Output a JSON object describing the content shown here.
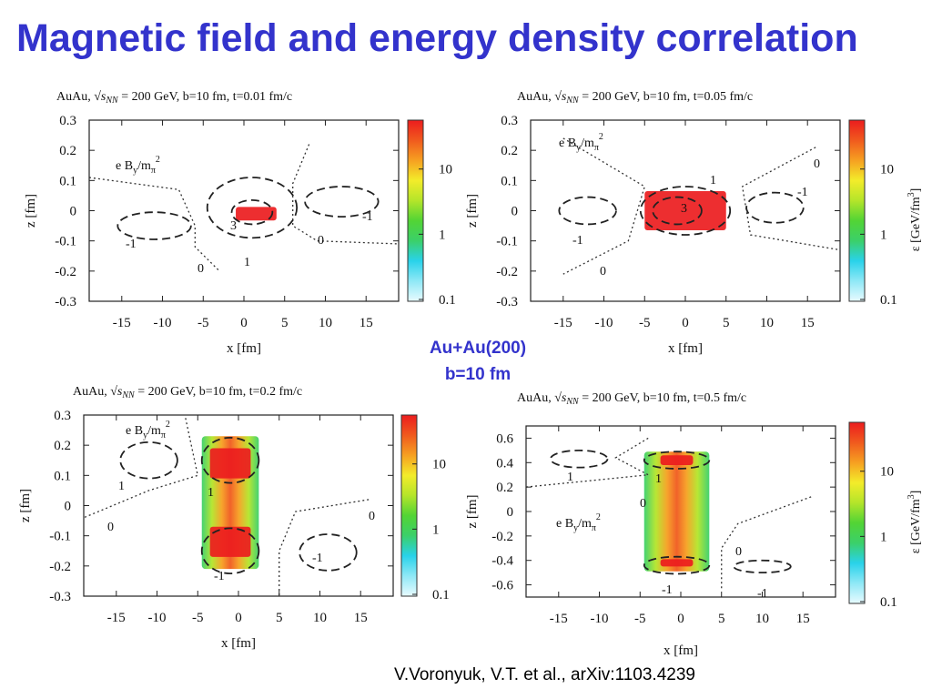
{
  "title": "Magnetic field and energy density correlation",
  "center_label": {
    "line1": "Au+Au(200)",
    "line2": "b=10 fm"
  },
  "citation": "V.Voronyuk, V.T.  et  al., arXiv:1103.4239",
  "colormap": {
    "stops": [
      "#e8fbff",
      "#8fe8f6",
      "#29d2ea",
      "#3bd06a",
      "#52d435",
      "#b4e52a",
      "#f3ec2a",
      "#f6a021",
      "#f05a1e",
      "#ec1c1e"
    ],
    "contour_color": "#222222",
    "boundary_color": "#333333"
  },
  "chart_data": [
    {
      "type": "heatmap",
      "title_prefix": "AuAu,  ",
      "title_suffix": " = 200 GeV,  b=10 fm,  t=0.01 fm/c",
      "sqrt_s_label": "√s",
      "sqrt_s_sub": "NN",
      "xlabel": "x [fm]",
      "ylabel": "z [fm]",
      "xlim": [
        -19,
        19
      ],
      "ylim": [
        -0.3,
        0.3
      ],
      "x_ticks": [
        "-15",
        "-10",
        "-5",
        "0",
        "5",
        "10",
        "15"
      ],
      "y_ticks": [
        "0.3",
        "0.2",
        "0.1",
        "0",
        "-0.1",
        "-0.2",
        "-0.3"
      ],
      "colorbar_ticks": [
        "10",
        "1",
        "0.1"
      ],
      "colorbar_label": "",
      "field_label_main": "e B",
      "field_label_y": "y",
      "field_label_mid": "/m",
      "field_label_pi": "π",
      "field_label_sq": "2",
      "contour_labels": [
        "3",
        "1",
        "-1",
        "-1",
        "0",
        "0"
      ],
      "energy_density_blobs": [
        {
          "cx": 1.5,
          "cz": -0.01,
          "w": 5,
          "h": 0.045,
          "level": "peak"
        }
      ],
      "contours_B": [
        {
          "cx": 1,
          "cz": 0.01,
          "rx": 5.5,
          "rz": 0.1,
          "value": "1"
        },
        {
          "cx": 1,
          "cz": -0.005,
          "rx": 2.5,
          "rz": 0.04,
          "value": "3"
        },
        {
          "cx": -11,
          "cz": -0.05,
          "rx": 4.5,
          "rz": 0.045,
          "value": "-1"
        },
        {
          "cx": 12,
          "cz": 0.03,
          "rx": 4.5,
          "rz": 0.05,
          "value": "-1"
        }
      ],
      "boundaries_B0": [
        [
          [
            -19,
            0.11
          ],
          [
            -8,
            0.07
          ],
          [
            -6,
            -0.05
          ],
          [
            -6,
            -0.12
          ],
          [
            -3,
            -0.2
          ]
        ],
        [
          [
            8,
            0.22
          ],
          [
            6,
            0.09
          ],
          [
            6,
            -0.05
          ],
          [
            9,
            -0.1
          ],
          [
            19,
            -0.11
          ]
        ]
      ]
    },
    {
      "type": "heatmap",
      "title_prefix": "AuAu,  ",
      "title_suffix": " = 200 GeV,  b=10 fm,  t=0.05 fm/c",
      "sqrt_s_label": "√s",
      "sqrt_s_sub": "NN",
      "xlabel": "x [fm]",
      "ylabel": "z [fm]",
      "xlim": [
        -19,
        19
      ],
      "ylim": [
        -0.3,
        0.3
      ],
      "x_ticks": [
        "-15",
        "-10",
        "-5",
        "0",
        "5",
        "10",
        "15"
      ],
      "y_ticks": [
        "0.3",
        "0.2",
        "0.1",
        "0",
        "-0.1",
        "-0.2",
        "-0.3"
      ],
      "colorbar_ticks": [
        "10",
        "1",
        "0.1"
      ],
      "colorbar_label": "ε [GeV/fm",
      "colorbar_label_exp": "3",
      "field_label_main": "e B",
      "field_label_y": "y",
      "field_label_mid": "/m",
      "field_label_pi": "π",
      "field_label_sq": "2",
      "contour_labels": [
        "3",
        "1",
        "-1",
        "-1",
        "0",
        "0"
      ],
      "energy_density_blobs": [
        {
          "cx": 0,
          "cz": 0,
          "w": 10,
          "h": 0.13,
          "level": "peak"
        }
      ],
      "contours_B": [
        {
          "cx": 0,
          "cz": 0,
          "rx": 5.5,
          "rz": 0.08,
          "value": "1"
        },
        {
          "cx": -1,
          "cz": 0,
          "rx": 3,
          "rz": 0.045,
          "value": "3"
        },
        {
          "cx": -12,
          "cz": 0,
          "rx": 3.5,
          "rz": 0.045,
          "value": "-1"
        },
        {
          "cx": 11,
          "cz": 0.01,
          "rx": 3.5,
          "rz": 0.05,
          "value": "-1"
        }
      ],
      "boundaries_B0": [
        [
          [
            -15,
            0.24
          ],
          [
            -5,
            0.08
          ],
          [
            -7,
            -0.1
          ],
          [
            -15,
            -0.21
          ]
        ],
        [
          [
            16,
            0.21
          ],
          [
            7,
            0.08
          ],
          [
            8,
            -0.08
          ],
          [
            19,
            -0.13
          ]
        ]
      ]
    },
    {
      "type": "heatmap",
      "title_prefix": "AuAu,  ",
      "title_suffix": " = 200 GeV,  b=10 fm,  t=0.2 fm/c",
      "sqrt_s_label": "√s",
      "sqrt_s_sub": "NN",
      "xlabel": "x [fm]",
      "ylabel": "z [fm]",
      "xlim": [
        -19,
        19
      ],
      "ylim": [
        -0.3,
        0.3
      ],
      "x_ticks": [
        "-15",
        "-10",
        "-5",
        "0",
        "5",
        "10",
        "15"
      ],
      "y_ticks": [
        "0.3",
        "0.2",
        "0.1",
        "0",
        "-0.1",
        "-0.2",
        "-0.3"
      ],
      "colorbar_ticks": [
        "10",
        "1",
        "0.1"
      ],
      "colorbar_label": "",
      "field_label_main": "e B",
      "field_label_y": "y",
      "field_label_mid": "/m",
      "field_label_pi": "π",
      "field_label_sq": "2",
      "contour_labels": [
        "1",
        "-1",
        "1",
        "-1",
        "0",
        "0"
      ],
      "energy_density_blobs": [
        {
          "cx": -1,
          "cz": 0.01,
          "w": 7,
          "h": 0.44,
          "level": "body"
        },
        {
          "cx": -1,
          "cz": 0.14,
          "w": 5,
          "h": 0.1,
          "level": "peak"
        },
        {
          "cx": -1,
          "cz": -0.12,
          "w": 5,
          "h": 0.1,
          "level": "peak"
        }
      ],
      "contours_B": [
        {
          "cx": -1,
          "cz": 0.15,
          "rx": 3.5,
          "rz": 0.075,
          "value": "1"
        },
        {
          "cx": -1,
          "cz": -0.15,
          "rx": 3.5,
          "rz": 0.075,
          "value": "1"
        },
        {
          "cx": -11,
          "cz": 0.15,
          "rx": 3.5,
          "rz": 0.06,
          "value": "-1"
        },
        {
          "cx": 11,
          "cz": -0.155,
          "rx": 3.5,
          "rz": 0.06,
          "value": "-1"
        }
      ],
      "boundaries_B0": [
        [
          [
            -6.5,
            0.29
          ],
          [
            -5,
            0.1
          ],
          [
            -11,
            0.05
          ],
          [
            -19,
            -0.04
          ]
        ],
        [
          [
            16,
            0.02
          ],
          [
            7,
            -0.02
          ],
          [
            5,
            -0.15
          ],
          [
            5,
            -0.3
          ]
        ]
      ]
    },
    {
      "type": "heatmap",
      "title_prefix": "AuAu,  ",
      "title_suffix": " = 200 GeV,  b=10 fm,  t=0.5 fm/c",
      "sqrt_s_label": "√s",
      "sqrt_s_sub": "NN",
      "xlabel": "x [fm]",
      "ylabel": "z [fm]",
      "xlim": [
        -19,
        19
      ],
      "ylim": [
        -0.7,
        0.7
      ],
      "x_ticks": [
        "-15",
        "-10",
        "-5",
        "0",
        "5",
        "10",
        "15"
      ],
      "y_ticks": [
        "0.6",
        "0.4",
        "0.2",
        "0",
        "-0.2",
        "-0.4",
        "-0.6"
      ],
      "colorbar_ticks": [
        "10",
        "1",
        "0.1"
      ],
      "colorbar_label": "ε [GeV/fm",
      "colorbar_label_exp": "3",
      "field_label_main": "e B",
      "field_label_y": "y",
      "field_label_mid": "/m",
      "field_label_pi": "π",
      "field_label_sq": "2",
      "contour_labels": [
        "1",
        "-1",
        "1",
        "-1",
        "0",
        "0"
      ],
      "energy_density_blobs": [
        {
          "cx": -0.5,
          "cz": 0,
          "w": 8,
          "h": 0.98,
          "level": "body"
        },
        {
          "cx": -0.5,
          "cz": 0.42,
          "w": 4,
          "h": 0.08,
          "level": "peak"
        },
        {
          "cx": -0.5,
          "cz": -0.42,
          "w": 4,
          "h": 0.06,
          "level": "peak"
        }
      ],
      "contours_B": [
        {
          "cx": -0.5,
          "cz": 0.42,
          "rx": 4,
          "rz": 0.07,
          "value": "1"
        },
        {
          "cx": -0.5,
          "cz": -0.44,
          "rx": 4,
          "rz": 0.07,
          "value": "1"
        },
        {
          "cx": -12.5,
          "cz": 0.43,
          "rx": 3.5,
          "rz": 0.07,
          "value": "-1"
        },
        {
          "cx": 10,
          "cz": -0.45,
          "rx": 3.5,
          "rz": 0.05,
          "value": "-1"
        }
      ],
      "boundaries_B0": [
        [
          [
            -4,
            0.6
          ],
          [
            -8,
            0.44
          ],
          [
            -4,
            0.3
          ],
          [
            -19,
            0.2
          ]
        ],
        [
          [
            16,
            0.12
          ],
          [
            7,
            -0.1
          ],
          [
            5,
            -0.3
          ],
          [
            5,
            -0.65
          ]
        ]
      ]
    }
  ]
}
